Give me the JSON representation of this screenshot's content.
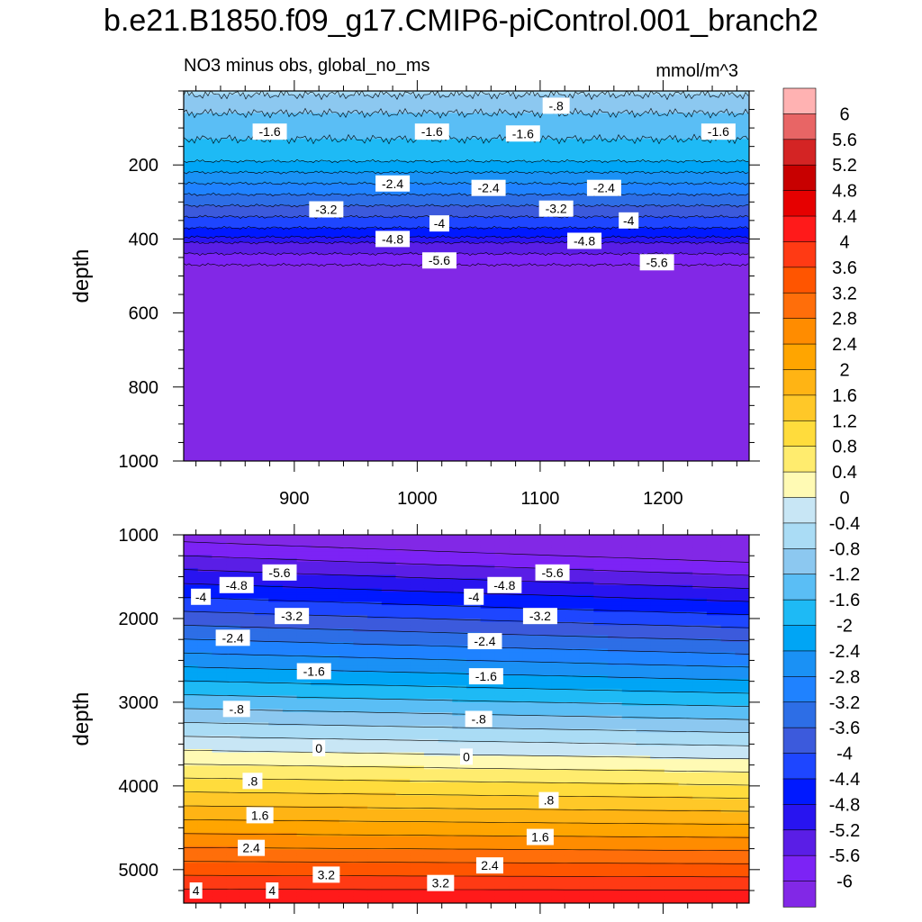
{
  "title": "b.e21.B1850.f09_g17.CMIP6-piControl.001_branch2",
  "left_string": "NO3 minus obs, global_no_ms",
  "right_string": "mmol/m^3",
  "chart_data": [
    {
      "type": "heatmap",
      "name": "upper",
      "xlabel": "",
      "ylabel": "depth",
      "xlim": [
        810,
        1270
      ],
      "ylim": [
        1000,
        0
      ],
      "xticks": [
        900,
        1000,
        1100,
        1200
      ],
      "yticks": [
        200,
        400,
        600,
        800,
        1000
      ],
      "bands": [
        {
          "depth": 10,
          "value": -0.6
        },
        {
          "depth": 60,
          "value": -1.0
        },
        {
          "depth": 130,
          "value": -1.4
        },
        {
          "depth": 190,
          "value": -1.8
        },
        {
          "depth": 220,
          "value": -2.2
        },
        {
          "depth": 250,
          "value": -2.6
        },
        {
          "depth": 280,
          "value": -3.0
        },
        {
          "depth": 310,
          "value": -3.4
        },
        {
          "depth": 340,
          "value": -3.8
        },
        {
          "depth": 370,
          "value": -4.2
        },
        {
          "depth": 395,
          "value": -4.6
        },
        {
          "depth": 410,
          "value": -5.0
        },
        {
          "depth": 440,
          "value": -5.4
        },
        {
          "depth": 470,
          "value": -5.8
        },
        {
          "depth": 1000,
          "value": -6.2
        }
      ],
      "contour_labels": [
        {
          "text": "-.8",
          "x": 1113,
          "y": 40
        },
        {
          "text": "-1.6",
          "x": 880,
          "y": 110
        },
        {
          "text": "-1.6",
          "x": 1012,
          "y": 110
        },
        {
          "text": "-1.6",
          "x": 1086,
          "y": 115
        },
        {
          "text": "-1.6",
          "x": 1245,
          "y": 110
        },
        {
          "text": "-2.4",
          "x": 980,
          "y": 250
        },
        {
          "text": "-2.4",
          "x": 1058,
          "y": 262
        },
        {
          "text": "-2.4",
          "x": 1152,
          "y": 262
        },
        {
          "text": "-3.2",
          "x": 926,
          "y": 320
        },
        {
          "text": "-3.2",
          "x": 1113,
          "y": 318
        },
        {
          "text": "-4",
          "x": 1018,
          "y": 358
        },
        {
          "text": "-4",
          "x": 1172,
          "y": 350
        },
        {
          "text": "-4.8",
          "x": 980,
          "y": 400
        },
        {
          "text": "-4.8",
          "x": 1136,
          "y": 405
        },
        {
          "text": "-5.6",
          "x": 1018,
          "y": 458
        },
        {
          "text": "-5.6",
          "x": 1195,
          "y": 463
        }
      ]
    },
    {
      "type": "heatmap",
      "name": "lower",
      "xlabel": "",
      "ylabel": "depth",
      "xlim": [
        810,
        1270
      ],
      "ylim": [
        5400,
        1000
      ],
      "xticks": [
        900,
        1000,
        1100,
        1200
      ],
      "yticks": [
        1000,
        2000,
        3000,
        4000,
        5000
      ],
      "contour_labels": [
        {
          "text": "-5.6",
          "x": 888,
          "y": 1450
        },
        {
          "text": "-5.6",
          "x": 1110,
          "y": 1450
        },
        {
          "text": "-4.8",
          "x": 853,
          "y": 1600
        },
        {
          "text": "-4.8",
          "x": 1071,
          "y": 1600
        },
        {
          "text": "-4",
          "x": 824,
          "y": 1740
        },
        {
          "text": "-4",
          "x": 1046,
          "y": 1740
        },
        {
          "text": "-3.2",
          "x": 898,
          "y": 1970
        },
        {
          "text": "-3.2",
          "x": 1100,
          "y": 1970
        },
        {
          "text": "-2.4",
          "x": 850,
          "y": 2230
        },
        {
          "text": "-2.4",
          "x": 1055,
          "y": 2270
        },
        {
          "text": "-1.6",
          "x": 916,
          "y": 2630
        },
        {
          "text": "-1.6",
          "x": 1056,
          "y": 2690
        },
        {
          "text": "-.8",
          "x": 853,
          "y": 3080
        },
        {
          "text": "-.8",
          "x": 1050,
          "y": 3200
        },
        {
          "text": "0",
          "x": 920,
          "y": 3550
        },
        {
          "text": "0",
          "x": 1040,
          "y": 3650
        },
        {
          "text": ".8",
          "x": 866,
          "y": 3940
        },
        {
          "text": ".8",
          "x": 1107,
          "y": 4170
        },
        {
          "text": "1.6",
          "x": 872,
          "y": 4350
        },
        {
          "text": "1.6",
          "x": 1100,
          "y": 4610
        },
        {
          "text": "2.4",
          "x": 865,
          "y": 4740
        },
        {
          "text": "2.4",
          "x": 1059,
          "y": 4950
        },
        {
          "text": "3.2",
          "x": 926,
          "y": 5060
        },
        {
          "text": "3.2",
          "x": 1019,
          "y": 5160
        },
        {
          "text": "4",
          "x": 820,
          "y": 5250
        },
        {
          "text": "4",
          "x": 882,
          "y": 5250
        }
      ]
    }
  ],
  "colorbar": {
    "labels": [
      "6",
      "5.6",
      "5.2",
      "4.8",
      "4.4",
      "4",
      "3.6",
      "3.2",
      "2.8",
      "2.4",
      "2",
      "1.6",
      "1.2",
      "0.8",
      "0.4",
      "0",
      "-0.4",
      "-0.8",
      "-1.2",
      "-1.6",
      "-2",
      "-2.4",
      "-2.8",
      "-3.2",
      "-3.6",
      "-4",
      "-4.4",
      "-4.8",
      "-5.2",
      "-5.6",
      "-6"
    ],
    "colors": [
      "#ffb2b2",
      "#e86565",
      "#d42424",
      "#c80000",
      "#e60000",
      "#ff1a1a",
      "#ff3a14",
      "#ff5500",
      "#ff6e0a",
      "#ff8c00",
      "#ffa500",
      "#ffb414",
      "#ffc828",
      "#ffdc3c",
      "#ffec6e",
      "#fffab4",
      "#c8e6f5",
      "#aadcf5",
      "#8cc8f0",
      "#5abef5",
      "#1ebaf5",
      "#00a5f5",
      "#1a91f5",
      "#1f82ff",
      "#2d6ee6",
      "#3c5adc",
      "#1e46ff",
      "#0019ff",
      "#2814f0",
      "#5a1ee6",
      "#7c23f5",
      "#8228e6"
    ]
  }
}
